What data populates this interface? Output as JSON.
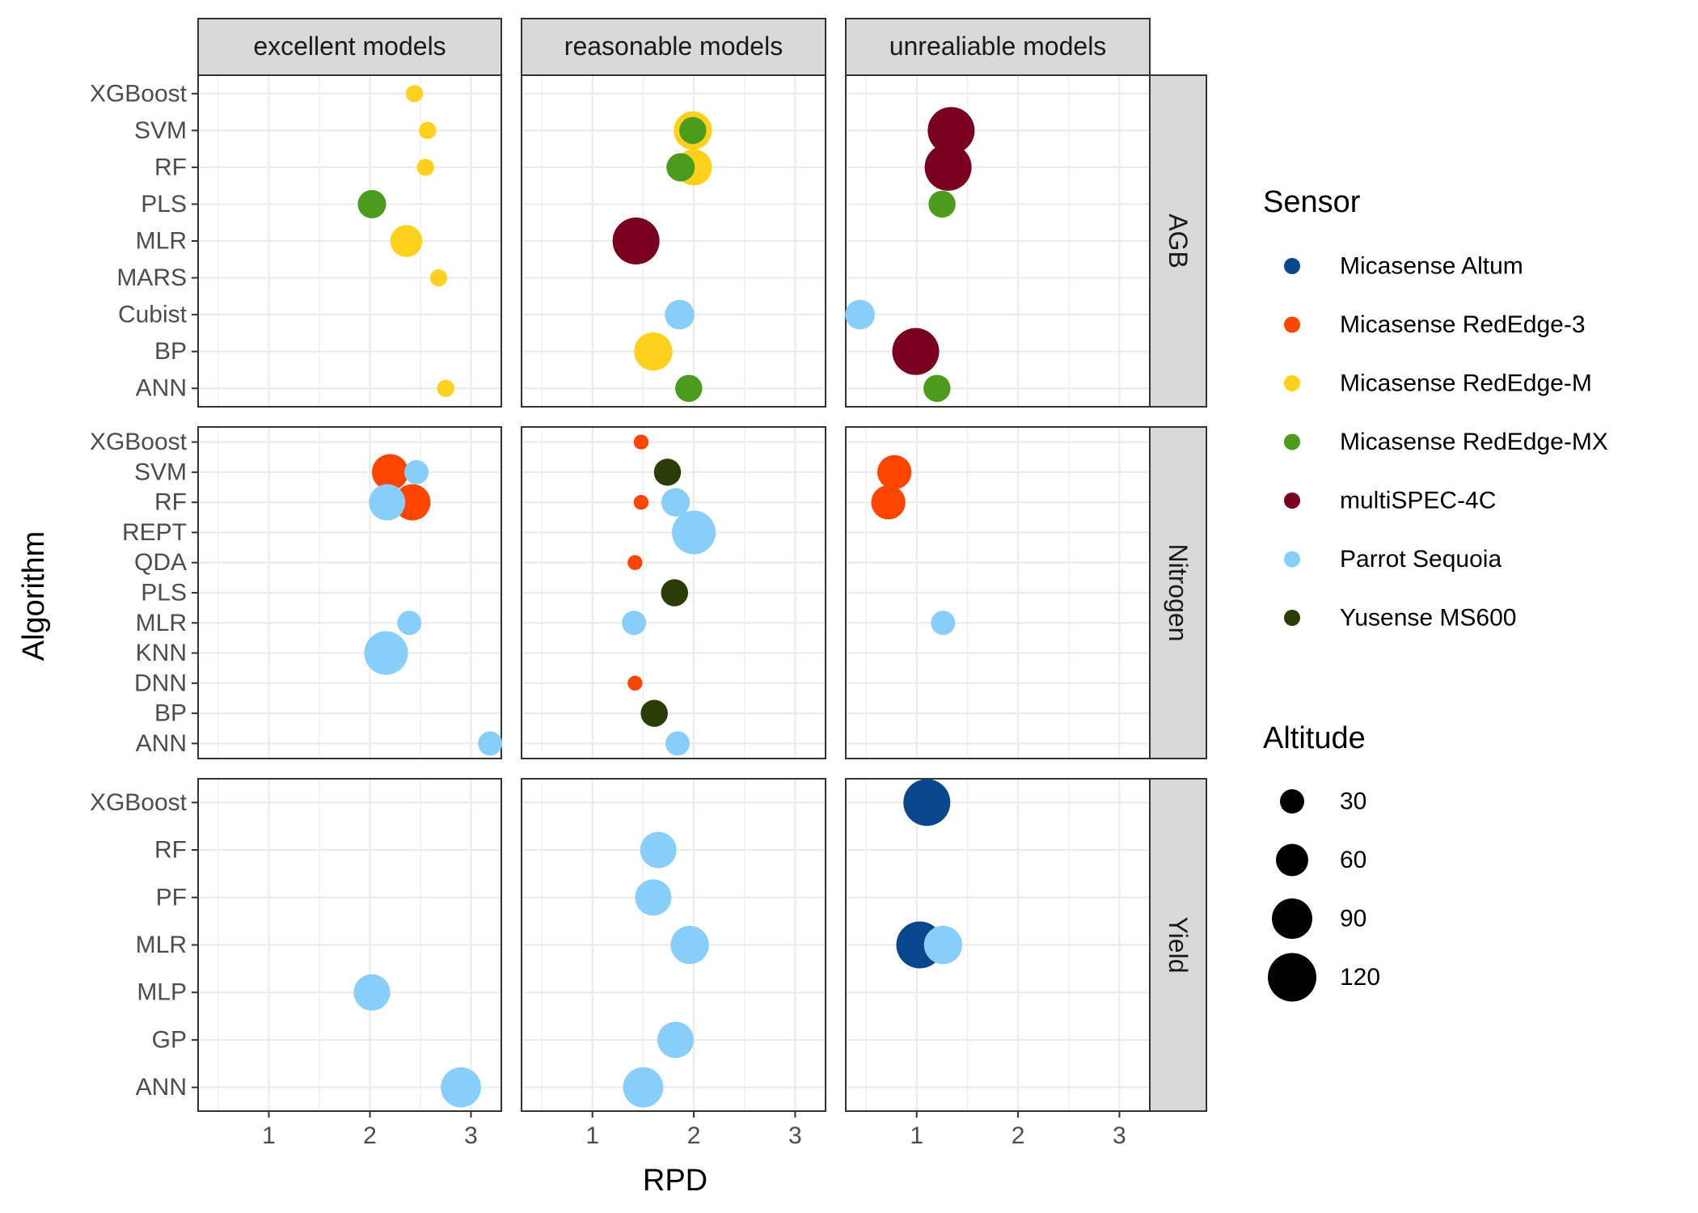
{
  "chart_data": {
    "type": "scatter",
    "x_axis_label": "RPD",
    "y_axis_label": "Algorithm",
    "x_ticks": [
      1,
      2,
      3
    ],
    "xlim": [
      0.3,
      3.3
    ],
    "columns": [
      "excellent models",
      "reasonable models",
      "unrealiable models"
    ],
    "rows": [
      {
        "name": "AGB",
        "algorithms": [
          "XGBoost",
          "SVM",
          "RF",
          "PLS",
          "MLR",
          "MARS",
          "Cubist",
          "BP",
          "ANN"
        ]
      },
      {
        "name": "Nitrogen",
        "algorithms": [
          "XGBoost",
          "SVM",
          "RF",
          "REPT",
          "QDA",
          "PLS",
          "MLR",
          "KNN",
          "DNN",
          "BP",
          "ANN"
        ]
      },
      {
        "name": "Yield",
        "algorithms": [
          "XGBoost",
          "RF",
          "PF",
          "MLR",
          "MLP",
          "GP",
          "ANN"
        ]
      }
    ],
    "sensors": [
      {
        "name": "Micasense Altum",
        "color": "#08478c"
      },
      {
        "name": "Micasense RedEdge-3",
        "color": "#ff4500"
      },
      {
        "name": "Micasense RedEdge-M",
        "color": "#ffd11c"
      },
      {
        "name": "Micasense RedEdge-MX",
        "color": "#4b9c1d"
      },
      {
        "name": "multiSPEC-4C",
        "color": "#7a0020"
      },
      {
        "name": "Parrot Sequoia",
        "color": "#87cefa"
      },
      {
        "name": "Yusense MS600",
        "color": "#2b3d06"
      }
    ],
    "legend": {
      "sensor_title": "Sensor",
      "altitude_title": "Altitude",
      "altitude_breaks": [
        "30",
        "60",
        "90",
        "120"
      ]
    },
    "points": [
      {
        "row": "AGB",
        "col": "excellent models",
        "algorithm": "XGBoost",
        "sensor": "Micasense RedEdge-M",
        "rpd": 2.44,
        "altitude": 20
      },
      {
        "row": "AGB",
        "col": "excellent models",
        "algorithm": "SVM",
        "sensor": "Micasense RedEdge-M",
        "rpd": 2.57,
        "altitude": 20
      },
      {
        "row": "AGB",
        "col": "excellent models",
        "algorithm": "RF",
        "sensor": "Micasense RedEdge-M",
        "rpd": 2.55,
        "altitude": 20
      },
      {
        "row": "AGB",
        "col": "excellent models",
        "algorithm": "PLS",
        "sensor": "Micasense RedEdge-MX",
        "rpd": 2.02,
        "altitude": 55
      },
      {
        "row": "AGB",
        "col": "excellent models",
        "algorithm": "MLR",
        "sensor": "Micasense RedEdge-M",
        "rpd": 2.36,
        "altitude": 70
      },
      {
        "row": "AGB",
        "col": "excellent models",
        "algorithm": "MARS",
        "sensor": "Micasense RedEdge-M",
        "rpd": 2.68,
        "altitude": 20
      },
      {
        "row": "AGB",
        "col": "excellent models",
        "algorithm": "ANN",
        "sensor": "Micasense RedEdge-M",
        "rpd": 2.75,
        "altitude": 20
      },
      {
        "row": "AGB",
        "col": "reasonable models",
        "algorithm": "SVM",
        "sensor": "Micasense RedEdge-M",
        "rpd": 1.99,
        "altitude": 100
      },
      {
        "row": "AGB",
        "col": "reasonable models",
        "algorithm": "SVM",
        "sensor": "Micasense RedEdge-MX",
        "rpd": 1.99,
        "altitude": 50
      },
      {
        "row": "AGB",
        "col": "reasonable models",
        "algorithm": "RF",
        "sensor": "Micasense RedEdge-M",
        "rpd": 2.0,
        "altitude": 90
      },
      {
        "row": "AGB",
        "col": "reasonable models",
        "algorithm": "RF",
        "sensor": "Micasense RedEdge-MX",
        "rpd": 1.87,
        "altitude": 55
      },
      {
        "row": "AGB",
        "col": "reasonable models",
        "algorithm": "MLR",
        "sensor": "multiSPEC-4C",
        "rpd": 1.43,
        "altitude": 150
      },
      {
        "row": "AGB",
        "col": "reasonable models",
        "algorithm": "Cubist",
        "sensor": "Parrot Sequoia",
        "rpd": 1.86,
        "altitude": 60
      },
      {
        "row": "AGB",
        "col": "reasonable models",
        "algorithm": "BP",
        "sensor": "Micasense RedEdge-M",
        "rpd": 1.6,
        "altitude": 100
      },
      {
        "row": "AGB",
        "col": "reasonable models",
        "algorithm": "ANN",
        "sensor": "Micasense RedEdge-MX",
        "rpd": 1.95,
        "altitude": 50
      },
      {
        "row": "AGB",
        "col": "unrealiable models",
        "algorithm": "SVM",
        "sensor": "multiSPEC-4C",
        "rpd": 1.34,
        "altitude": 150
      },
      {
        "row": "AGB",
        "col": "unrealiable models",
        "algorithm": "RF",
        "sensor": "multiSPEC-4C",
        "rpd": 1.31,
        "altitude": 150
      },
      {
        "row": "AGB",
        "col": "unrealiable models",
        "algorithm": "PLS",
        "sensor": "Micasense RedEdge-MX",
        "rpd": 1.25,
        "altitude": 50
      },
      {
        "row": "AGB",
        "col": "unrealiable models",
        "algorithm": "Cubist",
        "sensor": "Parrot Sequoia",
        "rpd": 0.44,
        "altitude": 60
      },
      {
        "row": "AGB",
        "col": "unrealiable models",
        "algorithm": "BP",
        "sensor": "multiSPEC-4C",
        "rpd": 0.99,
        "altitude": 150
      },
      {
        "row": "AGB",
        "col": "unrealiable models",
        "algorithm": "ANN",
        "sensor": "Micasense RedEdge-MX",
        "rpd": 1.2,
        "altitude": 50
      },
      {
        "row": "Nitrogen",
        "col": "excellent models",
        "algorithm": "SVM",
        "sensor": "Micasense RedEdge-3",
        "rpd": 2.2,
        "altitude": 90
      },
      {
        "row": "Nitrogen",
        "col": "excellent models",
        "algorithm": "SVM",
        "sensor": "Parrot Sequoia",
        "rpd": 2.46,
        "altitude": 40
      },
      {
        "row": "Nitrogen",
        "col": "excellent models",
        "algorithm": "RF",
        "sensor": "Micasense RedEdge-3",
        "rpd": 2.42,
        "altitude": 90
      },
      {
        "row": "Nitrogen",
        "col": "excellent models",
        "algorithm": "RF",
        "sensor": "Parrot Sequoia",
        "rpd": 2.17,
        "altitude": 90
      },
      {
        "row": "Nitrogen",
        "col": "excellent models",
        "algorithm": "MLR",
        "sensor": "Parrot Sequoia",
        "rpd": 2.39,
        "altitude": 40
      },
      {
        "row": "Nitrogen",
        "col": "excellent models",
        "algorithm": "KNN",
        "sensor": "Parrot Sequoia",
        "rpd": 2.16,
        "altitude": 130
      },
      {
        "row": "Nitrogen",
        "col": "excellent models",
        "algorithm": "ANN",
        "sensor": "Parrot Sequoia",
        "rpd": 3.19,
        "altitude": 40
      },
      {
        "row": "Nitrogen",
        "col": "reasonable models",
        "algorithm": "XGBoost",
        "sensor": "Micasense RedEdge-3",
        "rpd": 1.48,
        "altitude": 15
      },
      {
        "row": "Nitrogen",
        "col": "reasonable models",
        "algorithm": "SVM",
        "sensor": "Yusense MS600",
        "rpd": 1.74,
        "altitude": 50
      },
      {
        "row": "Nitrogen",
        "col": "reasonable models",
        "algorithm": "RF",
        "sensor": "Micasense RedEdge-3",
        "rpd": 1.48,
        "altitude": 15
      },
      {
        "row": "Nitrogen",
        "col": "reasonable models",
        "algorithm": "RF",
        "sensor": "Parrot Sequoia",
        "rpd": 1.82,
        "altitude": 55
      },
      {
        "row": "Nitrogen",
        "col": "reasonable models",
        "algorithm": "REPT",
        "sensor": "Parrot Sequoia",
        "rpd": 2.0,
        "altitude": 130
      },
      {
        "row": "Nitrogen",
        "col": "reasonable models",
        "algorithm": "QDA",
        "sensor": "Micasense RedEdge-3",
        "rpd": 1.42,
        "altitude": 15
      },
      {
        "row": "Nitrogen",
        "col": "reasonable models",
        "algorithm": "PLS",
        "sensor": "Yusense MS600",
        "rpd": 1.81,
        "altitude": 50
      },
      {
        "row": "Nitrogen",
        "col": "reasonable models",
        "algorithm": "MLR",
        "sensor": "Parrot Sequoia",
        "rpd": 1.41,
        "altitude": 40
      },
      {
        "row": "Nitrogen",
        "col": "reasonable models",
        "algorithm": "DNN",
        "sensor": "Micasense RedEdge-3",
        "rpd": 1.42,
        "altitude": 15
      },
      {
        "row": "Nitrogen",
        "col": "reasonable models",
        "algorithm": "BP",
        "sensor": "Yusense MS600",
        "rpd": 1.61,
        "altitude": 50
      },
      {
        "row": "Nitrogen",
        "col": "reasonable models",
        "algorithm": "ANN",
        "sensor": "Parrot Sequoia",
        "rpd": 1.84,
        "altitude": 40
      },
      {
        "row": "Nitrogen",
        "col": "unrealiable models",
        "algorithm": "SVM",
        "sensor": "Micasense RedEdge-3",
        "rpd": 0.78,
        "altitude": 80
      },
      {
        "row": "Nitrogen",
        "col": "unrealiable models",
        "algorithm": "RF",
        "sensor": "Micasense RedEdge-3",
        "rpd": 0.72,
        "altitude": 80
      },
      {
        "row": "Nitrogen",
        "col": "unrealiable models",
        "algorithm": "MLR",
        "sensor": "Parrot Sequoia",
        "rpd": 1.26,
        "altitude": 40
      },
      {
        "row": "Yield",
        "col": "excellent models",
        "algorithm": "MLP",
        "sensor": "Parrot Sequoia",
        "rpd": 2.02,
        "altitude": 90
      },
      {
        "row": "Yield",
        "col": "excellent models",
        "algorithm": "ANN",
        "sensor": "Parrot Sequoia",
        "rpd": 2.9,
        "altitude": 110
      },
      {
        "row": "Yield",
        "col": "reasonable models",
        "algorithm": "RF",
        "sensor": "Parrot Sequoia",
        "rpd": 1.65,
        "altitude": 90
      },
      {
        "row": "Yield",
        "col": "reasonable models",
        "algorithm": "PF",
        "sensor": "Parrot Sequoia",
        "rpd": 1.6,
        "altitude": 90
      },
      {
        "row": "Yield",
        "col": "reasonable models",
        "algorithm": "MLR",
        "sensor": "Parrot Sequoia",
        "rpd": 1.96,
        "altitude": 100
      },
      {
        "row": "Yield",
        "col": "reasonable models",
        "algorithm": "GP",
        "sensor": "Parrot Sequoia",
        "rpd": 1.82,
        "altitude": 90
      },
      {
        "row": "Yield",
        "col": "reasonable models",
        "algorithm": "ANN",
        "sensor": "Parrot Sequoia",
        "rpd": 1.5,
        "altitude": 110
      },
      {
        "row": "Yield",
        "col": "unrealiable models",
        "algorithm": "XGBoost",
        "sensor": "Micasense Altum",
        "rpd": 1.1,
        "altitude": 150
      },
      {
        "row": "Yield",
        "col": "unrealiable models",
        "algorithm": "MLR",
        "sensor": "Micasense Altum",
        "rpd": 1.03,
        "altitude": 150
      },
      {
        "row": "Yield",
        "col": "unrealiable models",
        "algorithm": "MLR",
        "sensor": "Parrot Sequoia",
        "rpd": 1.26,
        "altitude": 100
      }
    ]
  }
}
